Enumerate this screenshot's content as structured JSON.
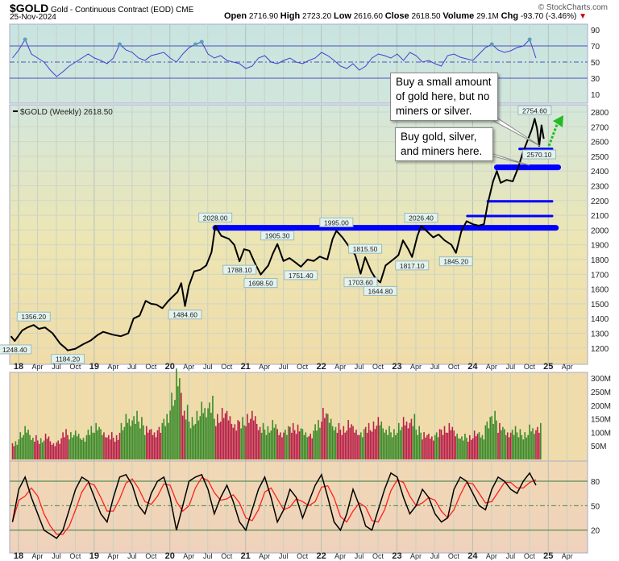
{
  "header": {
    "symbol": "$GOLD",
    "description": "Gold - Continuous Contract (EOD)",
    "exchange": "CME",
    "date": "25-Nov-2024",
    "credit": "© StockCharts.com",
    "open_label": "Open",
    "open": "2716.90",
    "high_label": "High",
    "high": "2723.20",
    "low_label": "Low",
    "low": "2616.60",
    "close_label": "Close",
    "close": "2618.50",
    "volume_label": "Volume",
    "volume": "29.1M",
    "chg_label": "Chg",
    "chg": "-93.70 (-3.46%)",
    "chg_arrow": "▼"
  },
  "annotations": {
    "note1": "Buy a small amount\nof gold here, but no\nminers or silver.",
    "note2": "Buy gold, silver,\nand miners here."
  },
  "colors": {
    "price": "#000000",
    "support": "#0000ff",
    "up_volume": "#3a8a2a",
    "down_volume": "#b8204a",
    "rsi": "#4040d0",
    "stoch_k": "#000000",
    "stoch_d": "#ff2020",
    "arrow": "#22bb22"
  },
  "chart_data": {
    "type": "line",
    "title": "$GOLD (Weekly) 2618.50",
    "x_tick_labels": [
      "18",
      "Apr",
      "Jul",
      "Oct",
      "19",
      "Apr",
      "Jul",
      "Oct",
      "20",
      "Apr",
      "Jul",
      "Oct",
      "21",
      "Apr",
      "Jul",
      "Oct",
      "22",
      "Apr",
      "Jul",
      "Oct",
      "23",
      "Apr",
      "Jul",
      "Oct",
      "24",
      "Apr",
      "Jul",
      "Oct",
      "25",
      "Apr"
    ],
    "price": {
      "ylim": [
        1100,
        2900
      ],
      "y_ticks": [
        1200,
        1300,
        1400,
        1500,
        1600,
        1700,
        1800,
        1900,
        2000,
        2100,
        2200,
        2300,
        2400,
        2500,
        2600,
        2700,
        2800
      ],
      "points": [
        [
          2017.9,
          1280
        ],
        [
          2017.95,
          1248.4
        ],
        [
          2018.05,
          1320
        ],
        [
          2018.12,
          1340
        ],
        [
          2018.2,
          1356.2
        ],
        [
          2018.27,
          1330
        ],
        [
          2018.35,
          1340
        ],
        [
          2018.45,
          1300
        ],
        [
          2018.55,
          1230
        ],
        [
          2018.62,
          1200
        ],
        [
          2018.65,
          1184.2
        ],
        [
          2018.75,
          1195
        ],
        [
          2018.85,
          1225
        ],
        [
          2018.95,
          1250
        ],
        [
          2019.05,
          1290
        ],
        [
          2019.12,
          1310
        ],
        [
          2019.25,
          1290
        ],
        [
          2019.35,
          1280
        ],
        [
          2019.45,
          1300
        ],
        [
          2019.52,
          1400
        ],
        [
          2019.6,
          1420
        ],
        [
          2019.68,
          1520
        ],
        [
          2019.75,
          1500
        ],
        [
          2019.82,
          1495
        ],
        [
          2019.9,
          1470
        ],
        [
          2019.98,
          1520
        ],
        [
          2020.1,
          1580
        ],
        [
          2020.15,
          1640
        ],
        [
          2020.2,
          1484.6
        ],
        [
          2020.25,
          1620
        ],
        [
          2020.32,
          1720
        ],
        [
          2020.4,
          1730
        ],
        [
          2020.48,
          1760
        ],
        [
          2020.55,
          1850
        ],
        [
          2020.6,
          2028
        ],
        [
          2020.68,
          1960
        ],
        [
          2020.78,
          1940
        ],
        [
          2020.85,
          1900
        ],
        [
          2020.92,
          1788.1
        ],
        [
          2020.98,
          1870
        ],
        [
          2021.05,
          1860
        ],
        [
          2021.12,
          1780
        ],
        [
          2021.2,
          1698.5
        ],
        [
          2021.3,
          1760
        ],
        [
          2021.36,
          1840
        ],
        [
          2021.42,
          1905.3
        ],
        [
          2021.5,
          1790
        ],
        [
          2021.58,
          1810
        ],
        [
          2021.66,
          1780
        ],
        [
          2021.73,
          1751.4
        ],
        [
          2021.82,
          1800
        ],
        [
          2021.9,
          1790
        ],
        [
          2021.98,
          1820
        ],
        [
          2022.08,
          1800
        ],
        [
          2022.15,
          1940
        ],
        [
          2022.2,
          1995
        ],
        [
          2022.28,
          1950
        ],
        [
          2022.35,
          1900
        ],
        [
          2022.45,
          1830
        ],
        [
          2022.52,
          1703.6
        ],
        [
          2022.58,
          1815.5
        ],
        [
          2022.66,
          1720
        ],
        [
          2022.72,
          1670
        ],
        [
          2022.78,
          1644.8
        ],
        [
          2022.85,
          1760
        ],
        [
          2022.95,
          1800
        ],
        [
          2023.02,
          1830
        ],
        [
          2023.08,
          1930
        ],
        [
          2023.15,
          1870
        ],
        [
          2023.2,
          1817.1
        ],
        [
          2023.27,
          1960
        ],
        [
          2023.32,
          2026.4
        ],
        [
          2023.4,
          1990
        ],
        [
          2023.48,
          1950
        ],
        [
          2023.55,
          1970
        ],
        [
          2023.63,
          1930
        ],
        [
          2023.72,
          1900
        ],
        [
          2023.78,
          1845.2
        ],
        [
          2023.85,
          1990
        ],
        [
          2023.92,
          2060
        ],
        [
          2024.0,
          2040
        ],
        [
          2024.08,
          2030
        ],
        [
          2024.15,
          2040
        ],
        [
          2024.2,
          2180
        ],
        [
          2024.27,
          2330
        ],
        [
          2024.32,
          2400
        ],
        [
          2024.37,
          2320
        ],
        [
          2024.45,
          2340
        ],
        [
          2024.53,
          2330
        ],
        [
          2024.6,
          2420
        ],
        [
          2024.66,
          2520
        ],
        [
          2024.72,
          2600
        ],
        [
          2024.78,
          2680
        ],
        [
          2024.82,
          2754.6
        ],
        [
          2024.85,
          2690
        ],
        [
          2024.88,
          2570.1
        ],
        [
          2024.91,
          2710
        ],
        [
          2024.94,
          2618.5
        ]
      ],
      "point_labels": [
        [
          "1248.40",
          2017.95,
          1248.4,
          "below"
        ],
        [
          "1356.20",
          2018.2,
          1356.2,
          "above"
        ],
        [
          "1184.20",
          2018.65,
          1184.2,
          "below"
        ],
        [
          "1484.60",
          2020.2,
          1484.6,
          "below"
        ],
        [
          "2028.00",
          2020.6,
          2028,
          "above"
        ],
        [
          "1788.10",
          2020.92,
          1788.1,
          "below"
        ],
        [
          "1698.50",
          2021.2,
          1698.5,
          "below"
        ],
        [
          "1905.30",
          2021.42,
          1905.3,
          "above"
        ],
        [
          "1751.40",
          2021.73,
          1751.4,
          "below"
        ],
        [
          "1995.00",
          2022.2,
          1995,
          "above"
        ],
        [
          "1815.50",
          2022.58,
          1815.5,
          "above"
        ],
        [
          "1703.60",
          2022.52,
          1703.6,
          "below"
        ],
        [
          "1644.80",
          2022.78,
          1644.8,
          "below"
        ],
        [
          "2026.40",
          2023.32,
          2026.4,
          "above"
        ],
        [
          "1817.10",
          2023.2,
          1817.1,
          "below"
        ],
        [
          "1845.20",
          2023.78,
          1845.2,
          "below"
        ],
        [
          "2754.60",
          2024.82,
          2754.6,
          "above"
        ],
        [
          "2570.10",
          2024.88,
          2570.1,
          "below"
        ]
      ],
      "support_lines": [
        {
          "from": 2020.6,
          "to": 2025.1,
          "value": 2015,
          "weight": "heavy"
        },
        {
          "from": 2023.93,
          "to": 2025.05,
          "value": 2095,
          "weight": "light"
        },
        {
          "from": 2024.2,
          "to": 2025.05,
          "value": 2195,
          "weight": "light"
        },
        {
          "from": 2024.32,
          "to": 2025.13,
          "value": 2425,
          "weight": "heavy"
        },
        {
          "from": 2024.62,
          "to": 2025.05,
          "value": 2550,
          "weight": "light"
        }
      ]
    },
    "rsi": {
      "ylim": [
        0,
        100
      ],
      "y_ticks": [
        90,
        70,
        50,
        30,
        10
      ],
      "start": 2017.92,
      "step_months": 1,
      "values": [
        55,
        65,
        78,
        60,
        55,
        50,
        40,
        32,
        38,
        45,
        50,
        55,
        60,
        55,
        52,
        48,
        55,
        72,
        65,
        62,
        55,
        52,
        58,
        60,
        62,
        55,
        50,
        60,
        68,
        72,
        75,
        60,
        55,
        58,
        52,
        50,
        48,
        42,
        45,
        55,
        58,
        50,
        48,
        52,
        55,
        50,
        48,
        52,
        55,
        62,
        58,
        52,
        45,
        42,
        48,
        40,
        45,
        55,
        60,
        58,
        55,
        60,
        52,
        62,
        58,
        50,
        52,
        48,
        45,
        58,
        60,
        56,
        54,
        52,
        60,
        68,
        72,
        65,
        62,
        64,
        68,
        70,
        78,
        55
      ]
    },
    "volume": {
      "ylim": [
        0,
        320
      ],
      "unit": "M",
      "y_tick_labels": [
        "300M",
        "250M",
        "200M",
        "150M",
        "100M",
        "50M"
      ],
      "y_ticks": [
        300,
        250,
        200,
        150,
        100,
        50
      ],
      "start": 2017.92,
      "step_months": 1,
      "values": [
        60,
        90,
        110,
        80,
        70,
        85,
        60,
        70,
        100,
        90,
        95,
        80,
        110,
        120,
        100,
        90,
        80,
        120,
        150,
        160,
        140,
        110,
        100,
        120,
        150,
        220,
        300,
        180,
        140,
        160,
        190,
        210,
        150,
        170,
        160,
        130,
        140,
        150,
        160,
        120,
        110,
        130,
        100,
        110,
        120,
        115,
        100,
        95,
        130,
        170,
        150,
        120,
        110,
        130,
        110,
        100,
        120,
        125,
        140,
        110,
        100,
        120,
        140,
        150,
        110,
        90,
        85,
        100,
        110,
        120,
        95,
        85,
        80,
        95,
        90,
        140,
        160,
        120,
        100,
        110,
        100,
        90,
        115,
        120
      ]
    },
    "stochastic": {
      "ylim": [
        0,
        100
      ],
      "y_ticks": [
        80,
        50,
        20
      ],
      "start": 2017.92,
      "step_months": 1,
      "k": [
        30,
        70,
        85,
        60,
        40,
        20,
        15,
        10,
        20,
        45,
        70,
        85,
        80,
        60,
        40,
        30,
        60,
        85,
        88,
        75,
        50,
        40,
        65,
        80,
        85,
        60,
        20,
        50,
        80,
        85,
        88,
        70,
        40,
        60,
        75,
        55,
        30,
        20,
        45,
        70,
        85,
        60,
        30,
        45,
        70,
        60,
        35,
        55,
        75,
        88,
        60,
        30,
        20,
        40,
        70,
        50,
        25,
        20,
        45,
        70,
        90,
        85,
        60,
        40,
        50,
        70,
        60,
        40,
        30,
        35,
        70,
        85,
        80,
        65,
        50,
        45,
        70,
        85,
        80,
        70,
        65,
        80,
        90,
        75
      ]
    }
  }
}
